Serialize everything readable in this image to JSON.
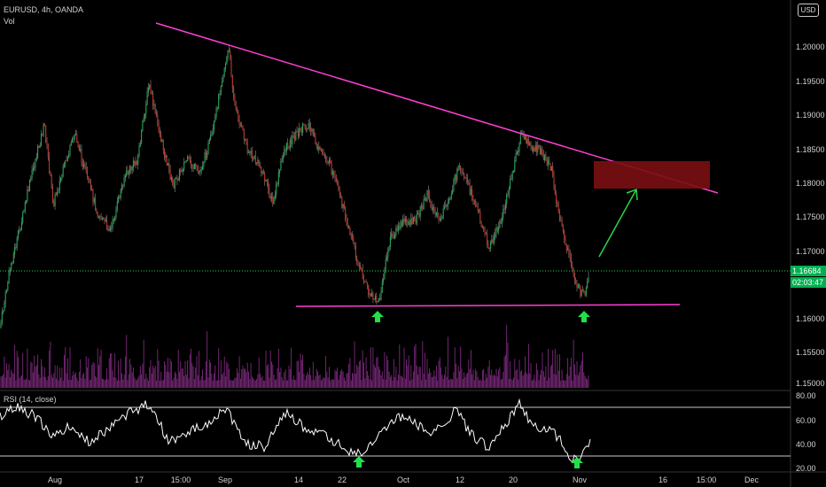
{
  "header": {
    "symbol": "EURUSD, 4h, OANDA",
    "volume_label": "Vol",
    "currency_button": "USD"
  },
  "price_axis": {
    "ticks": [
      "1.20000",
      "1.19500",
      "1.19000",
      "1.18500",
      "1.18000",
      "1.17500",
      "1.17000",
      "1.16500",
      "1.16000",
      "1.15500",
      "1.15000"
    ],
    "current_price": "1.16684",
    "countdown": "02:03:47"
  },
  "rsi": {
    "label": "RSI (14, close)",
    "ticks": [
      "80.00",
      "60.00",
      "40.00",
      "20.00"
    ]
  },
  "time_axis": {
    "ticks": [
      "Aug",
      "17",
      "15:00",
      "Sep",
      "14",
      "22",
      "Oct",
      "12",
      "20",
      "Nov",
      "16",
      "15:00",
      "Dec"
    ]
  },
  "colors": {
    "background": "#000000",
    "candle_up": "#26a65b",
    "candle_down": "#c0392b",
    "wick": "#8a8a8a",
    "trendline": "#ff3fd2",
    "target_zone": "#7a0f12",
    "arrow": "#2bd44a",
    "volume": "#8a2a8a"
  },
  "annotations": {
    "resistance_trendline": {
      "from": [
        "late Jul",
        1.2034
      ],
      "to": [
        "mid Dec",
        1.1782
      ]
    },
    "support_line": {
      "level": 1.1615
    },
    "target_zone": {
      "price_top": 1.1832,
      "price_bottom": 1.1794
    },
    "up_arrows": [
      "late Sep low",
      "early Nov low"
    ]
  }
}
